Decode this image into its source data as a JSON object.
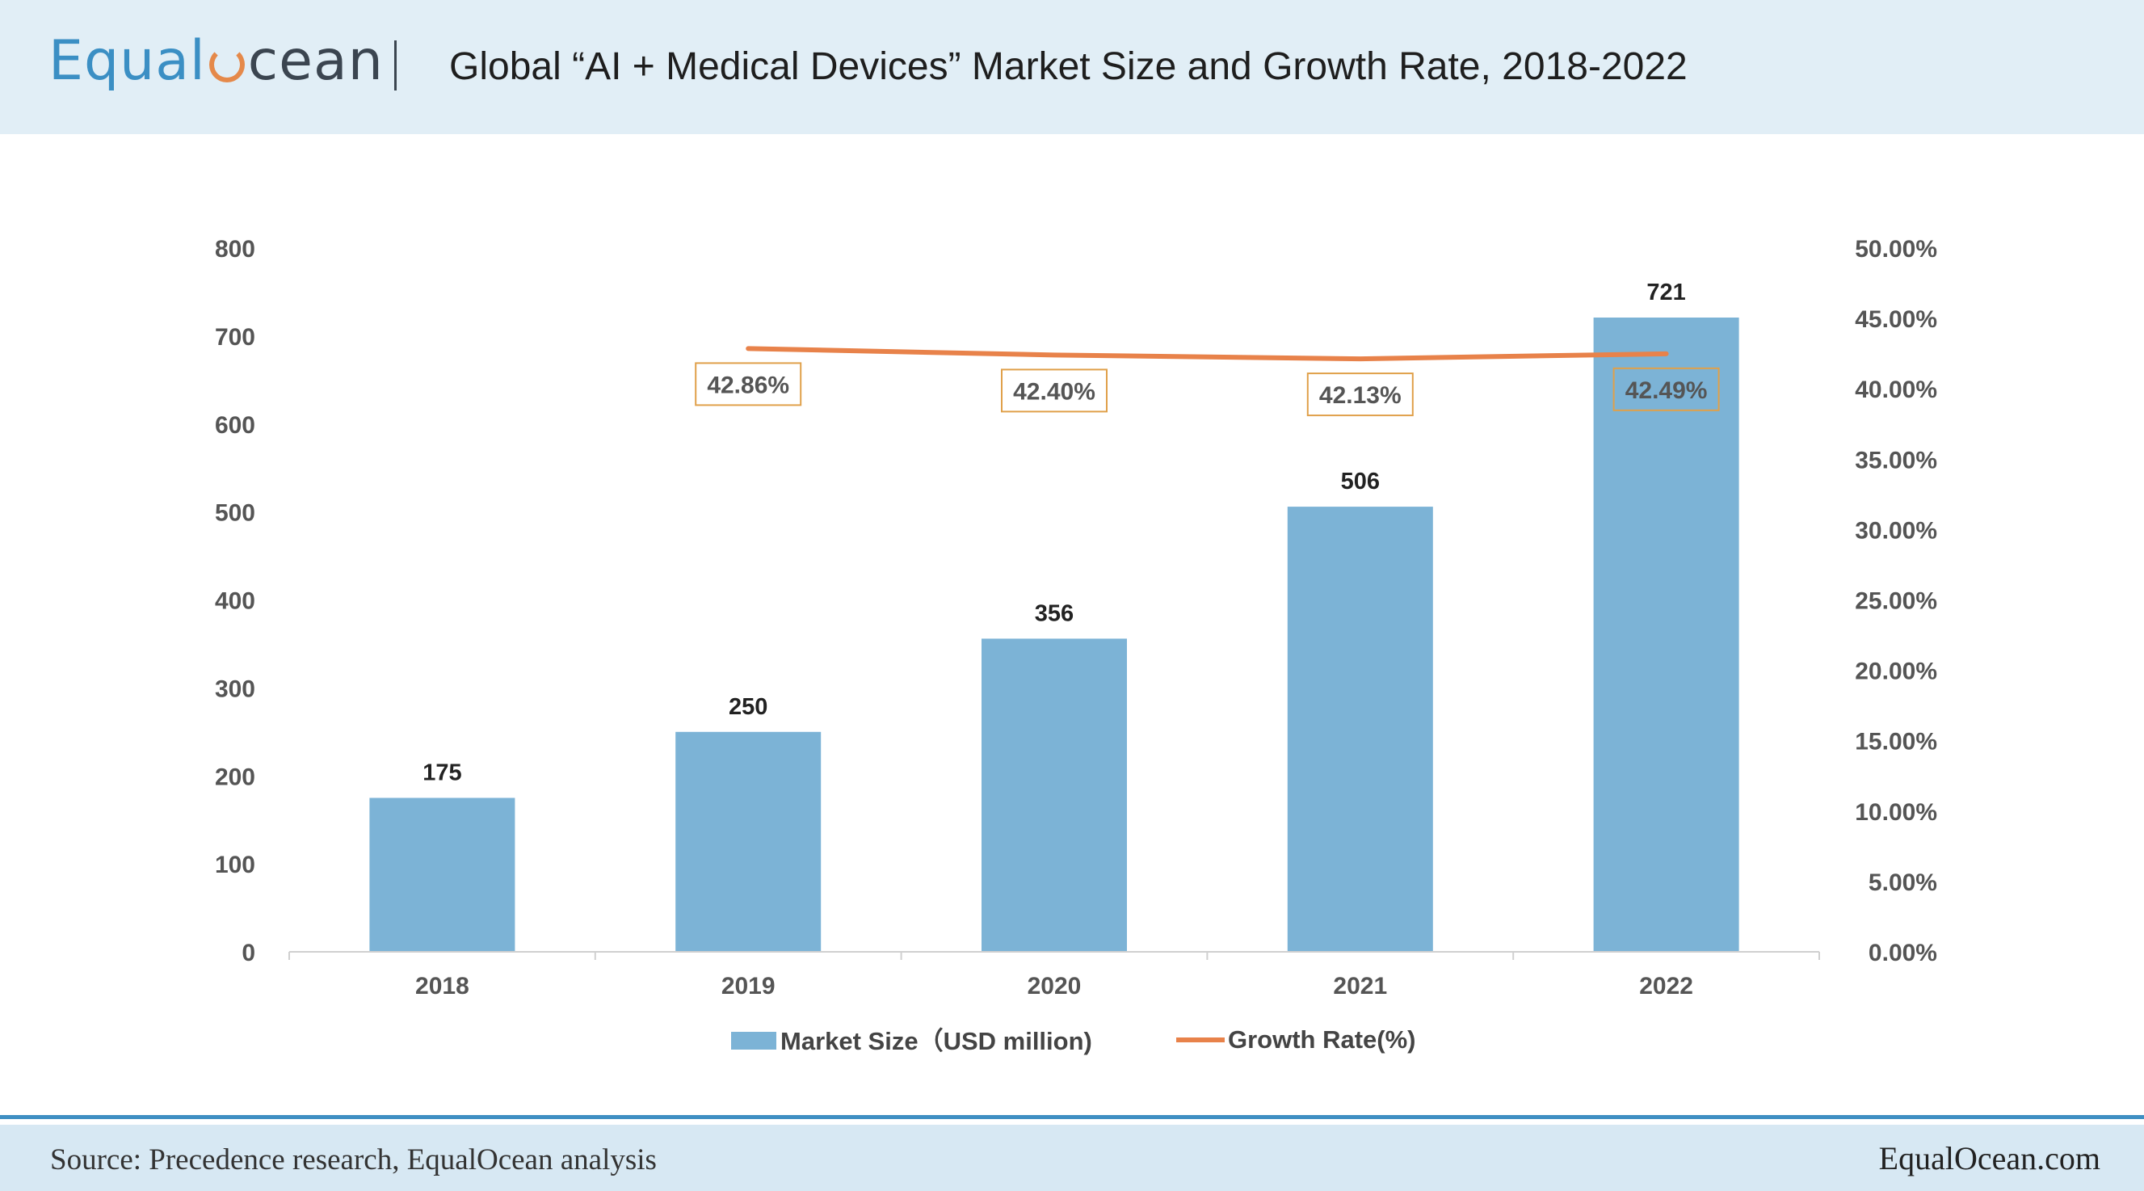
{
  "header": {
    "logo_prefix": "Equal",
    "logo_suffix": "cean",
    "title": "Global “AI + Medical Devices” Market Size and Growth Rate, 2018-2022"
  },
  "footer": {
    "source": "Source: Precedence research, EqualOcean analysis",
    "site": "EqualOcean.com"
  },
  "colors": {
    "bar": "#7cb3d6",
    "line": "#e8824a",
    "label_box": "#e0a04a",
    "header_bg": "#e1eef6",
    "footer_bg": "#d7e8f3",
    "footer_line": "#3f8fc3"
  },
  "chart_data": {
    "type": "bar",
    "title": "Global “AI + Medical Devices” Market Size and Growth Rate, 2018-2022",
    "categories": [
      "2018",
      "2019",
      "2020",
      "2021",
      "2022"
    ],
    "series": [
      {
        "name": "Market Size（USD million)",
        "type": "bar",
        "axis": "left",
        "values": [
          175,
          250,
          356,
          506,
          721
        ],
        "labels": [
          "175",
          "250",
          "356",
          "506",
          "721"
        ]
      },
      {
        "name": "Growth Rate(%)",
        "type": "line",
        "axis": "right",
        "values": [
          null,
          42.86,
          42.4,
          42.13,
          42.49
        ],
        "labels": [
          "",
          "42.86%",
          "42.40%",
          "42.13%",
          "42.49%"
        ]
      }
    ],
    "ylim_left": [
      0,
      800
    ],
    "yticks_left": [
      "0",
      "100",
      "200",
      "300",
      "400",
      "500",
      "600",
      "700",
      "800"
    ],
    "ylim_right": [
      0,
      50
    ],
    "yticks_right": [
      "0.00%",
      "5.00%",
      "10.00%",
      "15.00%",
      "20.00%",
      "25.00%",
      "30.00%",
      "35.00%",
      "40.00%",
      "45.00%",
      "50.00%"
    ],
    "legend": [
      "Market Size（USD million)",
      "Growth Rate(%)"
    ],
    "legend_position": "bottom",
    "grid": false
  }
}
